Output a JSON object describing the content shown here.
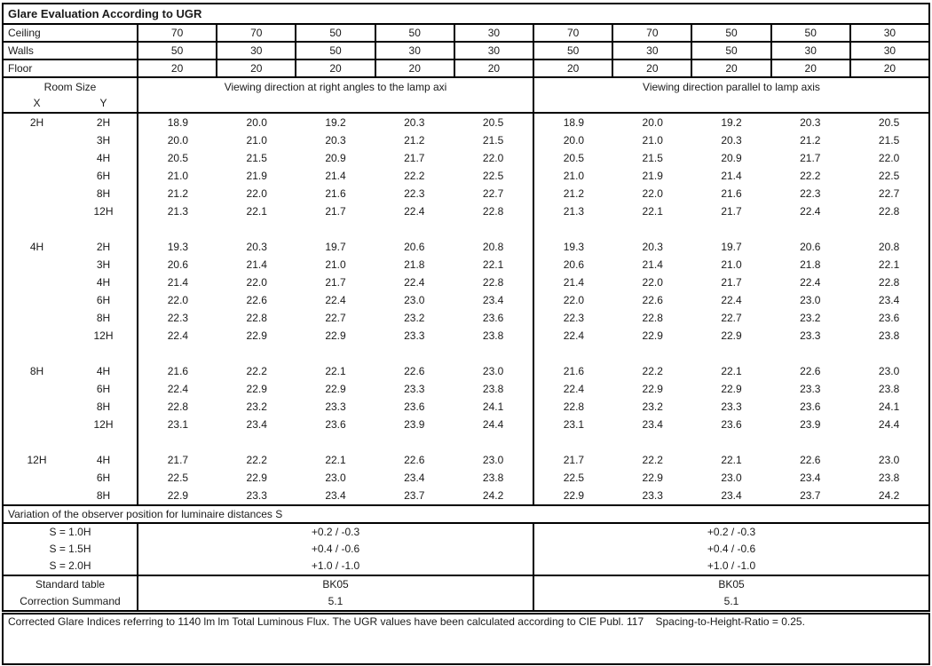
{
  "title": "Glare Evaluation According to UGR",
  "surface_rows": [
    {
      "label": "Ceiling",
      "values": [
        "70",
        "70",
        "50",
        "50",
        "30",
        "70",
        "70",
        "50",
        "50",
        "30"
      ]
    },
    {
      "label": "Walls",
      "values": [
        "50",
        "30",
        "50",
        "30",
        "30",
        "50",
        "30",
        "50",
        "30",
        "30"
      ]
    },
    {
      "label": "Floor",
      "values": [
        "20",
        "20",
        "20",
        "20",
        "20",
        "20",
        "20",
        "20",
        "20",
        "20"
      ]
    }
  ],
  "header": {
    "room_size_label": "Room Size",
    "x_label": "X",
    "y_label": "Y",
    "left_direction_label": "Viewing direction at right angles to the lamp axi",
    "right_direction_label": "Viewing direction parallel to lamp axis"
  },
  "ugr_groups": [
    {
      "x": "2H",
      "rows": [
        {
          "y": "2H",
          "values": [
            "18.9",
            "20.0",
            "19.2",
            "20.3",
            "20.5",
            "18.9",
            "20.0",
            "19.2",
            "20.3",
            "20.5"
          ]
        },
        {
          "y": "3H",
          "values": [
            "20.0",
            "21.0",
            "20.3",
            "21.2",
            "21.5",
            "20.0",
            "21.0",
            "20.3",
            "21.2",
            "21.5"
          ]
        },
        {
          "y": "4H",
          "values": [
            "20.5",
            "21.5",
            "20.9",
            "21.7",
            "22.0",
            "20.5",
            "21.5",
            "20.9",
            "21.7",
            "22.0"
          ]
        },
        {
          "y": "6H",
          "values": [
            "21.0",
            "21.9",
            "21.4",
            "22.2",
            "22.5",
            "21.0",
            "21.9",
            "21.4",
            "22.2",
            "22.5"
          ]
        },
        {
          "y": "8H",
          "values": [
            "21.2",
            "22.0",
            "21.6",
            "22.3",
            "22.7",
            "21.2",
            "22.0",
            "21.6",
            "22.3",
            "22.7"
          ]
        },
        {
          "y": "12H",
          "values": [
            "21.3",
            "22.1",
            "21.7",
            "22.4",
            "22.8",
            "21.3",
            "22.1",
            "21.7",
            "22.4",
            "22.8"
          ]
        }
      ]
    },
    {
      "x": "4H",
      "rows": [
        {
          "y": "2H",
          "values": [
            "19.3",
            "20.3",
            "19.7",
            "20.6",
            "20.8",
            "19.3",
            "20.3",
            "19.7",
            "20.6",
            "20.8"
          ]
        },
        {
          "y": "3H",
          "values": [
            "20.6",
            "21.4",
            "21.0",
            "21.8",
            "22.1",
            "20.6",
            "21.4",
            "21.0",
            "21.8",
            "22.1"
          ]
        },
        {
          "y": "4H",
          "values": [
            "21.4",
            "22.0",
            "21.7",
            "22.4",
            "22.8",
            "21.4",
            "22.0",
            "21.7",
            "22.4",
            "22.8"
          ]
        },
        {
          "y": "6H",
          "values": [
            "22.0",
            "22.6",
            "22.4",
            "23.0",
            "23.4",
            "22.0",
            "22.6",
            "22.4",
            "23.0",
            "23.4"
          ]
        },
        {
          "y": "8H",
          "values": [
            "22.3",
            "22.8",
            "22.7",
            "23.2",
            "23.6",
            "22.3",
            "22.8",
            "22.7",
            "23.2",
            "23.6"
          ]
        },
        {
          "y": "12H",
          "values": [
            "22.4",
            "22.9",
            "22.9",
            "23.3",
            "23.8",
            "22.4",
            "22.9",
            "22.9",
            "23.3",
            "23.8"
          ]
        }
      ]
    },
    {
      "x": "8H",
      "rows": [
        {
          "y": "4H",
          "values": [
            "21.6",
            "22.2",
            "22.1",
            "22.6",
            "23.0",
            "21.6",
            "22.2",
            "22.1",
            "22.6",
            "23.0"
          ]
        },
        {
          "y": "6H",
          "values": [
            "22.4",
            "22.9",
            "22.9",
            "23.3",
            "23.8",
            "22.4",
            "22.9",
            "22.9",
            "23.3",
            "23.8"
          ]
        },
        {
          "y": "8H",
          "values": [
            "22.8",
            "23.2",
            "23.3",
            "23.6",
            "24.1",
            "22.8",
            "23.2",
            "23.3",
            "23.6",
            "24.1"
          ]
        },
        {
          "y": "12H",
          "values": [
            "23.1",
            "23.4",
            "23.6",
            "23.9",
            "24.4",
            "23.1",
            "23.4",
            "23.6",
            "23.9",
            "24.4"
          ]
        }
      ]
    },
    {
      "x": "12H",
      "rows": [
        {
          "y": "4H",
          "values": [
            "21.7",
            "22.2",
            "22.1",
            "22.6",
            "23.0",
            "21.7",
            "22.2",
            "22.1",
            "22.6",
            "23.0"
          ]
        },
        {
          "y": "6H",
          "values": [
            "22.5",
            "22.9",
            "23.0",
            "23.4",
            "23.8",
            "22.5",
            "22.9",
            "23.0",
            "23.4",
            "23.8"
          ]
        },
        {
          "y": "8H",
          "values": [
            "22.9",
            "23.3",
            "23.4",
            "23.7",
            "24.2",
            "22.9",
            "23.3",
            "23.4",
            "23.7",
            "24.2"
          ]
        }
      ]
    }
  ],
  "variation_label": "Variation of the observer position for luminaire distances S",
  "variation_rows": [
    {
      "label": "S = 1.0H",
      "left": "+0.2 / -0.3",
      "right": "+0.2 / -0.3"
    },
    {
      "label": "S = 1.5H",
      "left": "+0.4 / -0.6",
      "right": "+0.4 / -0.6"
    },
    {
      "label": "S = 2.0H",
      "left": "+1.0 / -1.0",
      "right": "+1.0 / -1.0"
    }
  ],
  "summary_rows": [
    {
      "label": "Standard table",
      "left": "BK05",
      "right": "BK05"
    },
    {
      "label": "Correction Summand",
      "left": "5.1",
      "right": "5.1"
    }
  ],
  "footer": "Corrected Glare Indices referring to 1140 lm lm Total Luminous Flux. The UGR values have been calculated according to CIE Publ. 117    Spacing-to-Height-Ratio = 0.25."
}
